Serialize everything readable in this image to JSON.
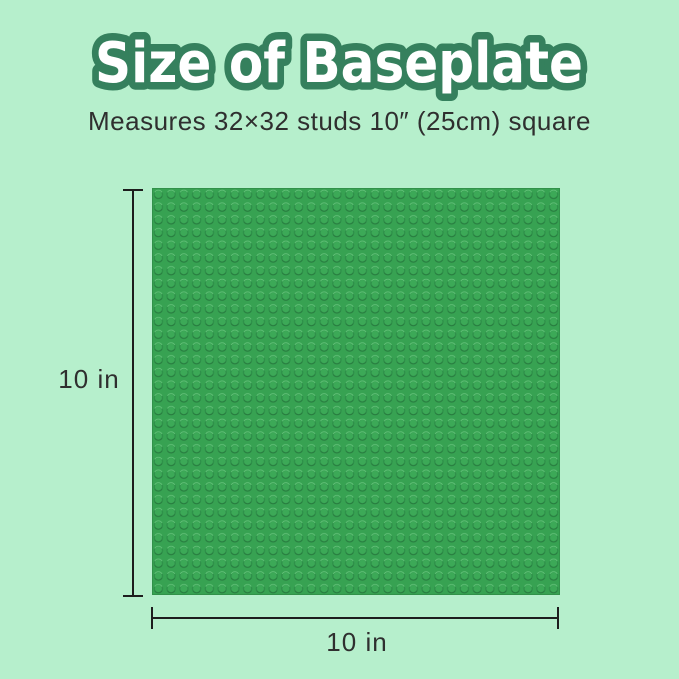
{
  "title": "Size of Baseplate",
  "subtitle": "Measures 32×32 studs 10″ (25cm) square",
  "baseplate": {
    "studs_columns": 32,
    "studs_rows": 32
  },
  "dimensions": {
    "height_label": "10 in",
    "width_label": "10 in"
  },
  "colors": {
    "background": "#b6efcc",
    "title_fill": "#ffffff",
    "title_outline": "#35805d",
    "subtitle_text": "#2f2f2f",
    "plate_base": "#37a252",
    "stud_ring": "#2e8f49",
    "stud_top": "#3ca957",
    "stud_highlight": "#66c77c",
    "dimension_line": "#1d1d1d"
  }
}
